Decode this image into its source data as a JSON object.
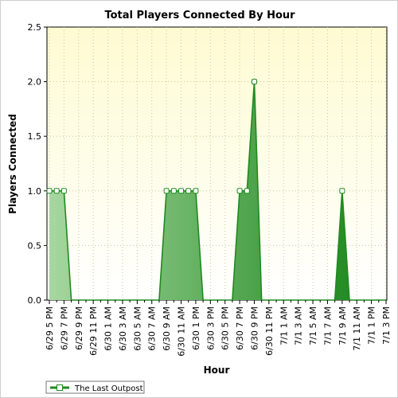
{
  "chart_data": {
    "type": "area",
    "title": "Total Players Connected By Hour",
    "xlabel": "Hour",
    "ylabel": "Players Connected",
    "ylim": [
      0,
      2.5
    ],
    "yticks": [
      "0.0",
      "0.5",
      "1.0",
      "1.5",
      "2.0",
      "2.5"
    ],
    "grid": true,
    "legend_position": "bottom-left",
    "x": [
      "6/29 5 PM",
      "6/29 6 PM",
      "6/29 7 PM",
      "6/29 8 PM",
      "6/29 9 PM",
      "6/29 10 PM",
      "6/29 11 PM",
      "6/30 12 AM",
      "6/30 1 AM",
      "6/30 2 AM",
      "6/30 3 AM",
      "6/30 4 AM",
      "6/30 5 AM",
      "6/30 6 AM",
      "6/30 7 AM",
      "6/30 8 AM",
      "6/30 9 AM",
      "6/30 10 AM",
      "6/30 11 AM",
      "6/30 12 PM",
      "6/30 1 PM",
      "6/30 2 PM",
      "6/30 3 PM",
      "6/30 4 PM",
      "6/30 5 PM",
      "6/30 6 PM",
      "6/30 7 PM",
      "6/30 8 PM",
      "6/30 9 PM",
      "6/30 10 PM",
      "6/30 11 PM",
      "7/1 12 AM",
      "7/1 1 AM",
      "7/1 2 AM",
      "7/1 3 AM",
      "7/1 4 AM",
      "7/1 5 AM",
      "7/1 6 AM",
      "7/1 7 AM",
      "7/1 8 AM",
      "7/1 9 AM",
      "7/1 10 AM",
      "7/1 11 AM",
      "7/1 12 PM",
      "7/1 1 PM",
      "7/1 2 PM",
      "7/1 3 PM"
    ],
    "xtick_labels": [
      "6/29 5 PM",
      "6/29 7 PM",
      "6/29 9 PM",
      "6/29 11 PM",
      "6/30 1 AM",
      "6/30 3 AM",
      "6/30 5 AM",
      "6/30 7 AM",
      "6/30 9 AM",
      "6/30 11 AM",
      "6/30 1 PM",
      "6/30 3 PM",
      "6/30 5 PM",
      "6/30 7 PM",
      "6/30 9 PM",
      "6/30 11 PM",
      "7/1 1 AM",
      "7/1 3 AM",
      "7/1 5 AM",
      "7/1 7 AM",
      "7/1 9 AM",
      "7/1 11 AM",
      "7/1 1 PM",
      "7/1 3 PM"
    ],
    "series": [
      {
        "name": "The Last Outpost",
        "values": [
          1,
          1,
          1,
          0,
          0,
          0,
          0,
          0,
          0,
          0,
          0,
          0,
          0,
          0,
          0,
          0,
          1,
          1,
          1,
          1,
          1,
          0,
          0,
          0,
          0,
          0,
          1,
          1,
          2,
          0,
          0,
          0,
          0,
          0,
          0,
          0,
          0,
          0,
          0,
          0,
          1,
          0,
          0,
          0,
          0,
          0,
          0
        ]
      }
    ],
    "colors": {
      "plot_background_top": "#fefbd2",
      "plot_background_bottom": "#ffffff",
      "line": "#1f8a1f",
      "fill_light": "#a6d7a0",
      "fill_dark": "#148214",
      "grid": "#c8c8a8"
    }
  }
}
